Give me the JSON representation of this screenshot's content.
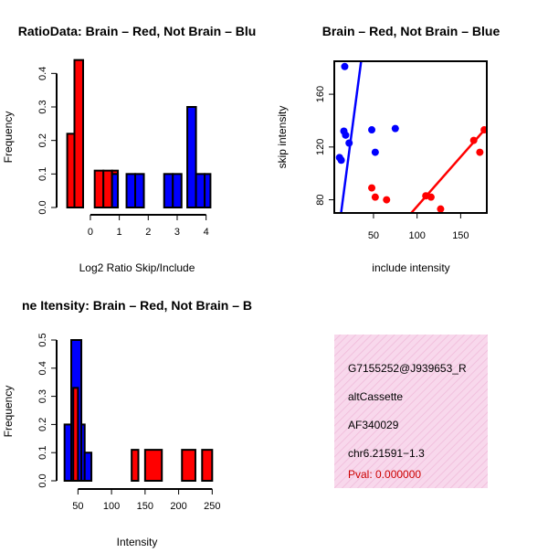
{
  "colors": {
    "brain": "#ff0000",
    "not_brain": "#0000ff",
    "overlap": "#a020f0",
    "info_bg": "#f8d8ec",
    "pval": "#cc0000"
  },
  "chart_data": [
    {
      "type": "bar",
      "title": "RatioData: Brain – Red, Not Brain – Blu",
      "xlabel": "Log2 Ratio Skip/Include",
      "ylabel": "Frequency",
      "xlim": [
        -0.85,
        4.2
      ],
      "ylim": [
        0,
        0.45
      ],
      "xticks": [
        "0",
        "1",
        "2",
        "3",
        "4"
      ],
      "xtick_values": [
        0,
        1,
        2,
        3,
        4
      ],
      "yticks": [
        "0.0",
        "0.1",
        "0.2",
        "0.3",
        "0.4"
      ],
      "ytick_values": [
        0,
        0.1,
        0.2,
        0.3,
        0.4
      ],
      "series": [
        {
          "name": "Brain",
          "bins": [
            [
              -0.8,
              -0.55
            ],
            [
              -0.55,
              -0.25
            ],
            [
              0.15,
              0.45
            ],
            [
              0.45,
              0.75
            ],
            [
              0.75,
              0.95
            ]
          ],
          "values": [
            0.22,
            0.44,
            0.11,
            0.11,
            0.11
          ]
        },
        {
          "name": "Not Brain",
          "bins": [
            [
              0.75,
              0.95
            ],
            [
              1.25,
              1.55
            ],
            [
              1.55,
              1.85
            ],
            [
              2.55,
              2.85
            ],
            [
              2.85,
              3.15
            ],
            [
              3.35,
              3.65
            ],
            [
              3.65,
              3.95
            ],
            [
              3.95,
              4.15
            ]
          ],
          "values": [
            0.1,
            0.1,
            0.1,
            0.1,
            0.1,
            0.3,
            0.1,
            0.1
          ]
        }
      ]
    },
    {
      "type": "scatter",
      "title": "Brain – Red, Not Brain – Blue",
      "xlabel": "include intensity",
      "ylabel": "skip intensity",
      "xlim": [
        5,
        180
      ],
      "ylim": [
        70,
        185
      ],
      "xticks": [
        "50",
        "100",
        "150"
      ],
      "xtick_values": [
        50,
        100,
        150
      ],
      "yticks": [
        "80",
        "120",
        "160"
      ],
      "ytick_values": [
        80,
        120,
        160
      ],
      "series": [
        {
          "name": "Not Brain",
          "x": [
            17,
            11,
            13,
            16,
            18,
            22,
            48,
            52,
            75
          ],
          "y": [
            181,
            112,
            110,
            132,
            129,
            123,
            133,
            116,
            134
          ]
        },
        {
          "name": "Brain",
          "x": [
            48,
            52,
            65,
            110,
            116,
            127,
            165,
            172,
            177
          ],
          "y": [
            89,
            82,
            80,
            83,
            82,
            73,
            125,
            116,
            133
          ]
        }
      ],
      "fits": [
        {
          "name": "Not Brain fit",
          "slope": 5.0,
          "intercept": 6
        },
        {
          "name": "Brain fit",
          "slope": 0.75,
          "intercept": 0
        }
      ]
    },
    {
      "type": "bar",
      "title": "ne Itensity: Brain – Red, Not Brain – B",
      "xlabel": "Intensity",
      "ylabel": "Frequency",
      "xlim": [
        25,
        255
      ],
      "ylim": [
        0,
        0.5
      ],
      "xticks": [
        "50",
        "100",
        "150",
        "200",
        "250"
      ],
      "xtick_values": [
        50,
        100,
        150,
        200,
        250
      ],
      "yticks": [
        "0.0",
        "0.1",
        "0.2",
        "0.3",
        "0.4",
        "0.5"
      ],
      "ytick_values": [
        0,
        0.1,
        0.2,
        0.3,
        0.4,
        0.5
      ],
      "series": [
        {
          "name": "Not Brain",
          "bins": [
            [
              30,
              40
            ],
            [
              40,
              55
            ],
            [
              55,
              60
            ],
            [
              60,
              70
            ]
          ],
          "values": [
            0.2,
            0.5,
            0.2,
            0.1
          ]
        },
        {
          "name": "Brain",
          "bins": [
            [
              43,
              50
            ],
            [
              130,
              140
            ],
            [
              150,
              175
            ],
            [
              205,
              225
            ],
            [
              235,
              250
            ]
          ],
          "values": [
            0.33,
            0.11,
            0.11,
            0.11,
            0.11
          ]
        }
      ]
    }
  ],
  "info": {
    "event_id": "G7155252@J939653_R",
    "event_type": "altCassette",
    "accession": "AF340029",
    "location": "chr6.21591−1.3",
    "pval": "Pval: 0.000000"
  }
}
